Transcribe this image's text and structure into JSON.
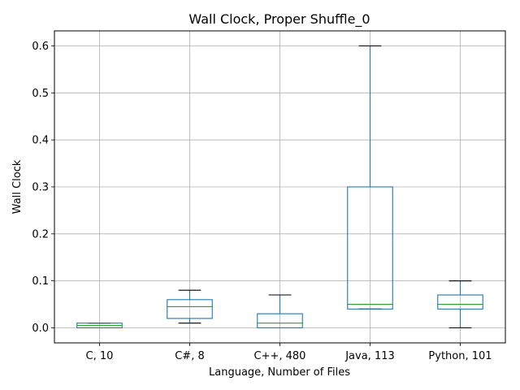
{
  "chart_data": {
    "type": "box",
    "title": "Wall Clock, Proper Shuffle_0",
    "xlabel": "Language, Number of Files",
    "ylabel": "Wall Clock",
    "ylim": [
      -0.032,
      0.632
    ],
    "yticks": [
      0.0,
      0.1,
      0.2,
      0.3,
      0.4,
      0.5,
      0.6
    ],
    "ytick_labels": [
      "0.0",
      "0.1",
      "0.2",
      "0.3",
      "0.4",
      "0.5",
      "0.6"
    ],
    "grid": true,
    "categories": [
      "C, 10",
      "C#, 8",
      "C++, 480",
      "Java, 113",
      "Python, 101"
    ],
    "boxes": [
      {
        "label": "C, 10",
        "whisker_low": 0.0,
        "q1": 0.0,
        "median": 0.005,
        "q3": 0.01,
        "whisker_high": 0.01
      },
      {
        "label": "C#, 8",
        "whisker_low": 0.01,
        "q1": 0.02,
        "median": 0.045,
        "q3": 0.06,
        "whisker_high": 0.08
      },
      {
        "label": "C++, 480",
        "whisker_low": 0.0,
        "q1": 0.0,
        "median": 0.01,
        "q3": 0.03,
        "whisker_high": 0.07
      },
      {
        "label": "Java, 113",
        "whisker_low": 0.04,
        "q1": 0.04,
        "median": 0.05,
        "q3": 0.3,
        "whisker_high": 0.6
      },
      {
        "label": "Python, 101",
        "whisker_low": 0.0,
        "q1": 0.04,
        "median": 0.05,
        "q3": 0.07,
        "whisker_high": 0.1
      }
    ],
    "colors": {
      "box": "#1f77b4",
      "median": "#2ca02c",
      "whisker_cap": "#000000",
      "grid": "#b0b0b0",
      "axis": "#000000"
    }
  }
}
